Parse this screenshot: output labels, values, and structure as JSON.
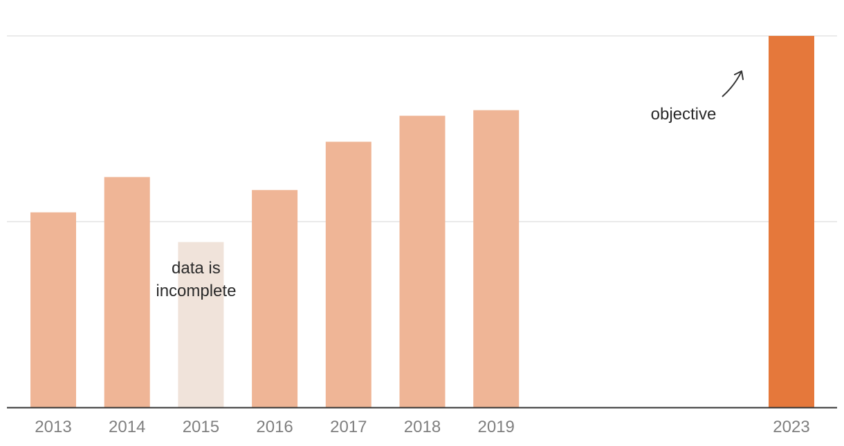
{
  "chart_data": {
    "type": "bar",
    "categories": [
      "2013",
      "2014",
      "2015",
      "2016",
      "2017",
      "2018",
      "2019",
      "2023"
    ],
    "values": [
      1.05,
      1.24,
      0.89,
      1.17,
      1.43,
      1.57,
      1.6,
      2.0
    ],
    "ylim": [
      0,
      2
    ],
    "gridlines": [
      1,
      2
    ],
    "grid": true,
    "title": "",
    "xlabel": "",
    "ylabel": "",
    "bar_status": [
      "actual",
      "actual",
      "incomplete",
      "actual",
      "actual",
      "actual",
      "actual",
      "objective"
    ],
    "colors": {
      "actual": "#efb596",
      "incomplete": "#f0e3da",
      "objective": "#e5783b",
      "grid": "#e3e3e3",
      "axis": "#333333",
      "tick_text": "#7f7f7f",
      "annotation_text": "#2a2a2a"
    },
    "annotations": [
      {
        "category": "2015",
        "lines": [
          "data is",
          "incomplete"
        ]
      },
      {
        "category": "2023",
        "lines": [
          "objective"
        ],
        "arrow": true
      }
    ]
  }
}
